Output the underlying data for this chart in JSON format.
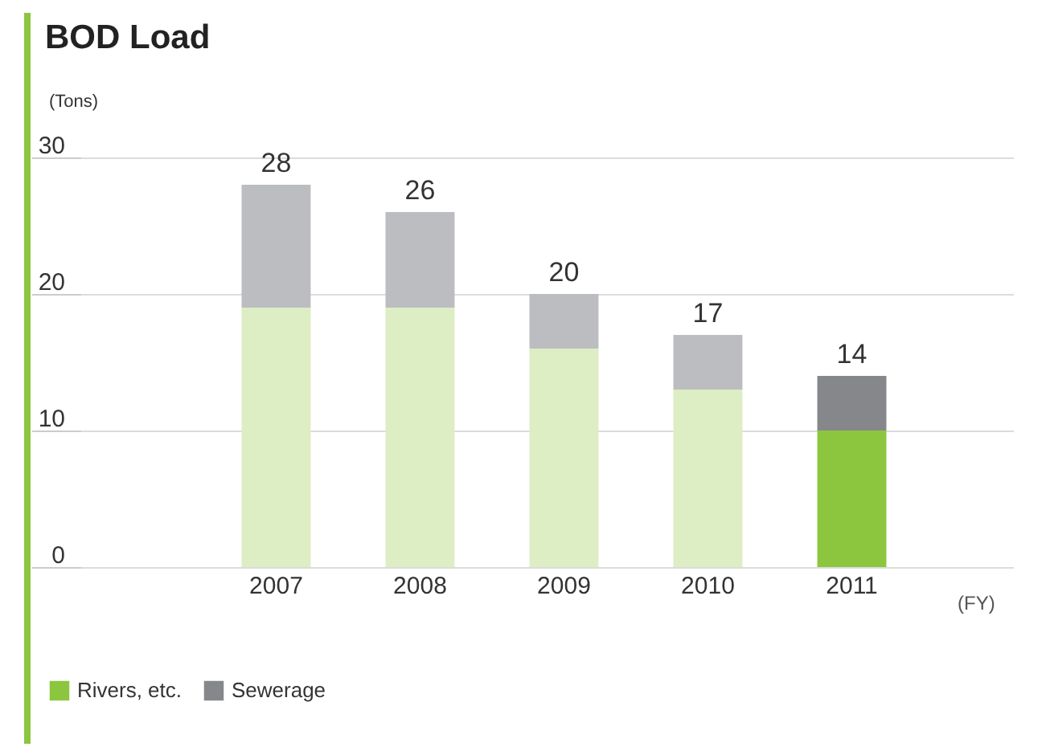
{
  "chart_data": {
    "type": "bar",
    "title": "BOD Load",
    "ylabel": "(Tons)",
    "xlabel": "(FY)",
    "categories": [
      "2007",
      "2008",
      "2009",
      "2010",
      "2011"
    ],
    "stacked": true,
    "series": [
      {
        "name": "Rivers, etc.",
        "color": "#8cc63f",
        "colors": [
          "#ddedc4",
          "#ddedc4",
          "#ddedc4",
          "#ddedc4",
          "#8cc63f"
        ],
        "values": [
          19,
          19,
          16,
          13,
          10
        ]
      },
      {
        "name": "Sewerage",
        "color": "#86878b",
        "colors": [
          "#bcbdc1",
          "#bcbdc1",
          "#bcbdc1",
          "#bcbdc1",
          "#86878b"
        ],
        "values": [
          9,
          7,
          4,
          4,
          4
        ]
      }
    ],
    "totals": [
      "28",
      "26",
      "20",
      "17",
      "14"
    ],
    "ylim": [
      0,
      30
    ],
    "yticks": [
      0,
      10,
      20,
      30
    ],
    "grid": "y",
    "legend": "bottom left"
  }
}
